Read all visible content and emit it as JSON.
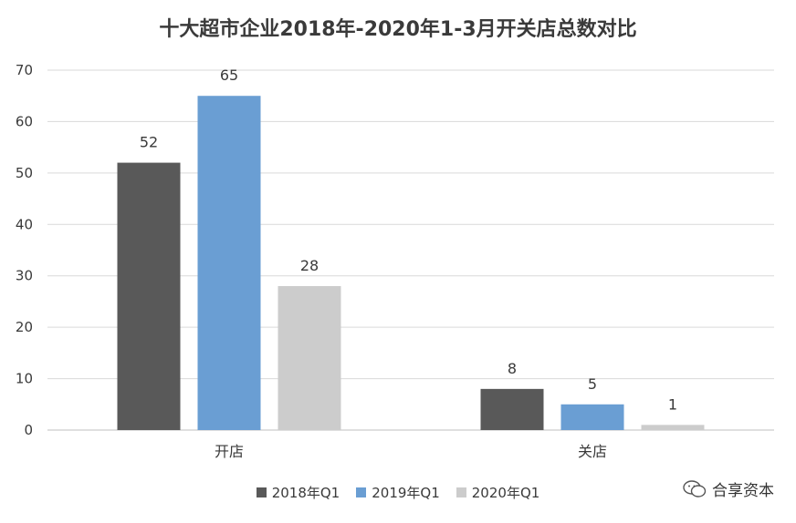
{
  "chart_data": {
    "type": "bar",
    "title": "十大超市企业2018年-2020年1-3月开关店总数对比",
    "categories": [
      "开店",
      "关店"
    ],
    "series": [
      {
        "name": "2018年Q1",
        "values": [
          52,
          8
        ],
        "color": "#595959"
      },
      {
        "name": "2019年Q1",
        "values": [
          65,
          5
        ],
        "color": "#6a9ed3"
      },
      {
        "name": "2020年Q1",
        "values": [
          28,
          1
        ],
        "color": "#cccccc"
      }
    ],
    "ylim": [
      0,
      70
    ],
    "yticks": [
      0,
      10,
      20,
      30,
      40,
      50,
      60,
      70
    ],
    "grid": true,
    "legend_position": "bottom"
  },
  "watermark": {
    "icon": "wechat-icon",
    "text": "合享资本"
  }
}
